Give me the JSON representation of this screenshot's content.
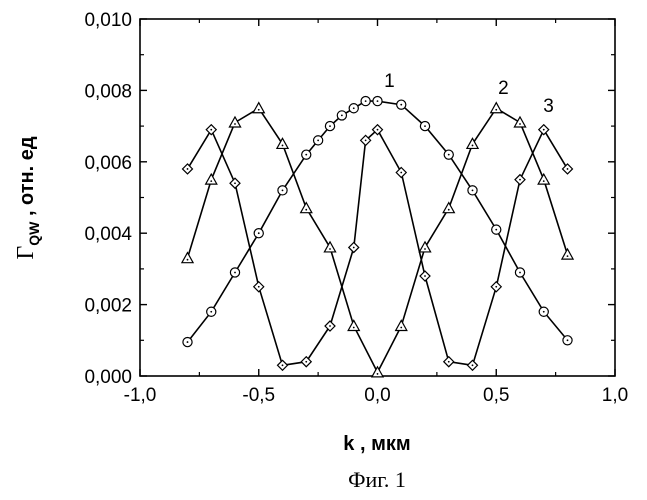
{
  "chart_data": {
    "type": "line",
    "title": "",
    "xlabel": "k , мкм",
    "ylabel_main": "Γ",
    "ylabel_sub": "QW",
    "ylabel_rest": " , отн. ед",
    "xlim": [
      -1.0,
      1.0
    ],
    "ylim": [
      0.0,
      0.01
    ],
    "x_ticks": [
      -1.0,
      -0.5,
      0.0,
      0.5,
      1.0
    ],
    "x_tick_labels": [
      "-1,0",
      "-0,5",
      "0,0",
      "0,5",
      "1,0"
    ],
    "y_ticks": [
      0.0,
      0.002,
      0.004,
      0.006,
      0.008,
      0.01
    ],
    "y_tick_labels": [
      "0,000",
      "0,002",
      "0,004",
      "0,006",
      "0,008",
      "0,010"
    ],
    "grid": false,
    "legend": "none",
    "caption": "Фиг. 1",
    "series": [
      {
        "name": "1",
        "marker": "circle",
        "x": [
          -0.8,
          -0.7,
          -0.6,
          -0.5,
          -0.4,
          -0.3,
          -0.25,
          -0.2,
          -0.15,
          -0.1,
          -0.05,
          0.0,
          0.1,
          0.2,
          0.3,
          0.4,
          0.5,
          0.6,
          0.7,
          0.8
        ],
        "y": [
          0.00095,
          0.0018,
          0.0029,
          0.004,
          0.0052,
          0.0062,
          0.0066,
          0.007,
          0.0073,
          0.0075,
          0.0077,
          0.0077,
          0.0076,
          0.007,
          0.0062,
          0.0052,
          0.0041,
          0.0029,
          0.0018,
          0.001
        ]
      },
      {
        "name": "2",
        "marker": "triangle",
        "x": [
          -0.8,
          -0.7,
          -0.6,
          -0.5,
          -0.4,
          -0.3,
          -0.2,
          -0.1,
          0.0,
          0.1,
          0.2,
          0.3,
          0.4,
          0.5,
          0.6,
          0.7,
          0.8
        ],
        "y": [
          0.0033,
          0.0055,
          0.0071,
          0.0075,
          0.0065,
          0.0047,
          0.0036,
          0.0014,
          0.0001,
          0.0014,
          0.0036,
          0.0047,
          0.0065,
          0.0075,
          0.0071,
          0.0055,
          0.0034
        ]
      },
      {
        "name": "3",
        "marker": "diamond",
        "x": [
          -0.8,
          -0.7,
          -0.6,
          -0.5,
          -0.4,
          -0.3,
          -0.2,
          -0.1,
          -0.05,
          0.0,
          0.1,
          0.2,
          0.3,
          0.4,
          0.5,
          0.6,
          0.7,
          0.8
        ],
        "y": [
          0.0058,
          0.0069,
          0.0054,
          0.0025,
          0.0003,
          0.0004,
          0.0014,
          0.0036,
          0.0066,
          0.0069,
          0.0057,
          0.0028,
          0.0004,
          0.0003,
          0.0025,
          0.0055,
          0.0069,
          0.0058
        ]
      }
    ],
    "curve_labels": [
      {
        "text": "1",
        "x": 0.05,
        "y": 0.0081
      },
      {
        "text": "2",
        "x": 0.53,
        "y": 0.0079
      },
      {
        "text": "3",
        "x": 0.72,
        "y": 0.0074
      }
    ]
  }
}
